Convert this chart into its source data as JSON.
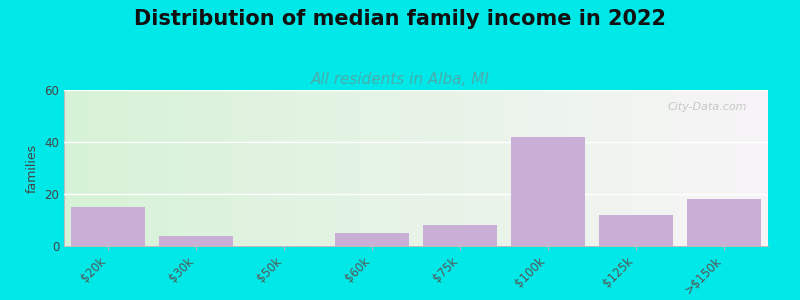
{
  "title": "Distribution of median family income in 2022",
  "subtitle": "All residents in Alba, MI",
  "categories": [
    "$20k",
    "$30k",
    "$50k",
    "$60k",
    "$75k",
    "$100k",
    "$125k",
    ">$150k"
  ],
  "x_positions": [
    0,
    1,
    2,
    3,
    4,
    5,
    6,
    7
  ],
  "values": [
    15,
    4,
    0,
    5,
    8,
    42,
    12,
    18
  ],
  "bar_color": "#c9aed6",
  "ylabel": "families",
  "ylim": [
    0,
    60
  ],
  "yticks": [
    0,
    20,
    40,
    60
  ],
  "background_color": "#00e8e8",
  "grad_color_topleft": "#d6f0d0",
  "grad_color_right": "#f8f8f8",
  "title_fontsize": 15,
  "subtitle_fontsize": 11,
  "subtitle_color": "#4aacac",
  "watermark": "City-Data.com",
  "bar_width": 0.85,
  "tick_label_positions": [
    0,
    1,
    2,
    3,
    4,
    5,
    6,
    7
  ],
  "tick_labels": [
    "$20k",
    "$30k",
    "$50k",
    "$60k",
    "$75k",
    "$100k",
    "$125k",
    ">$150k"
  ]
}
